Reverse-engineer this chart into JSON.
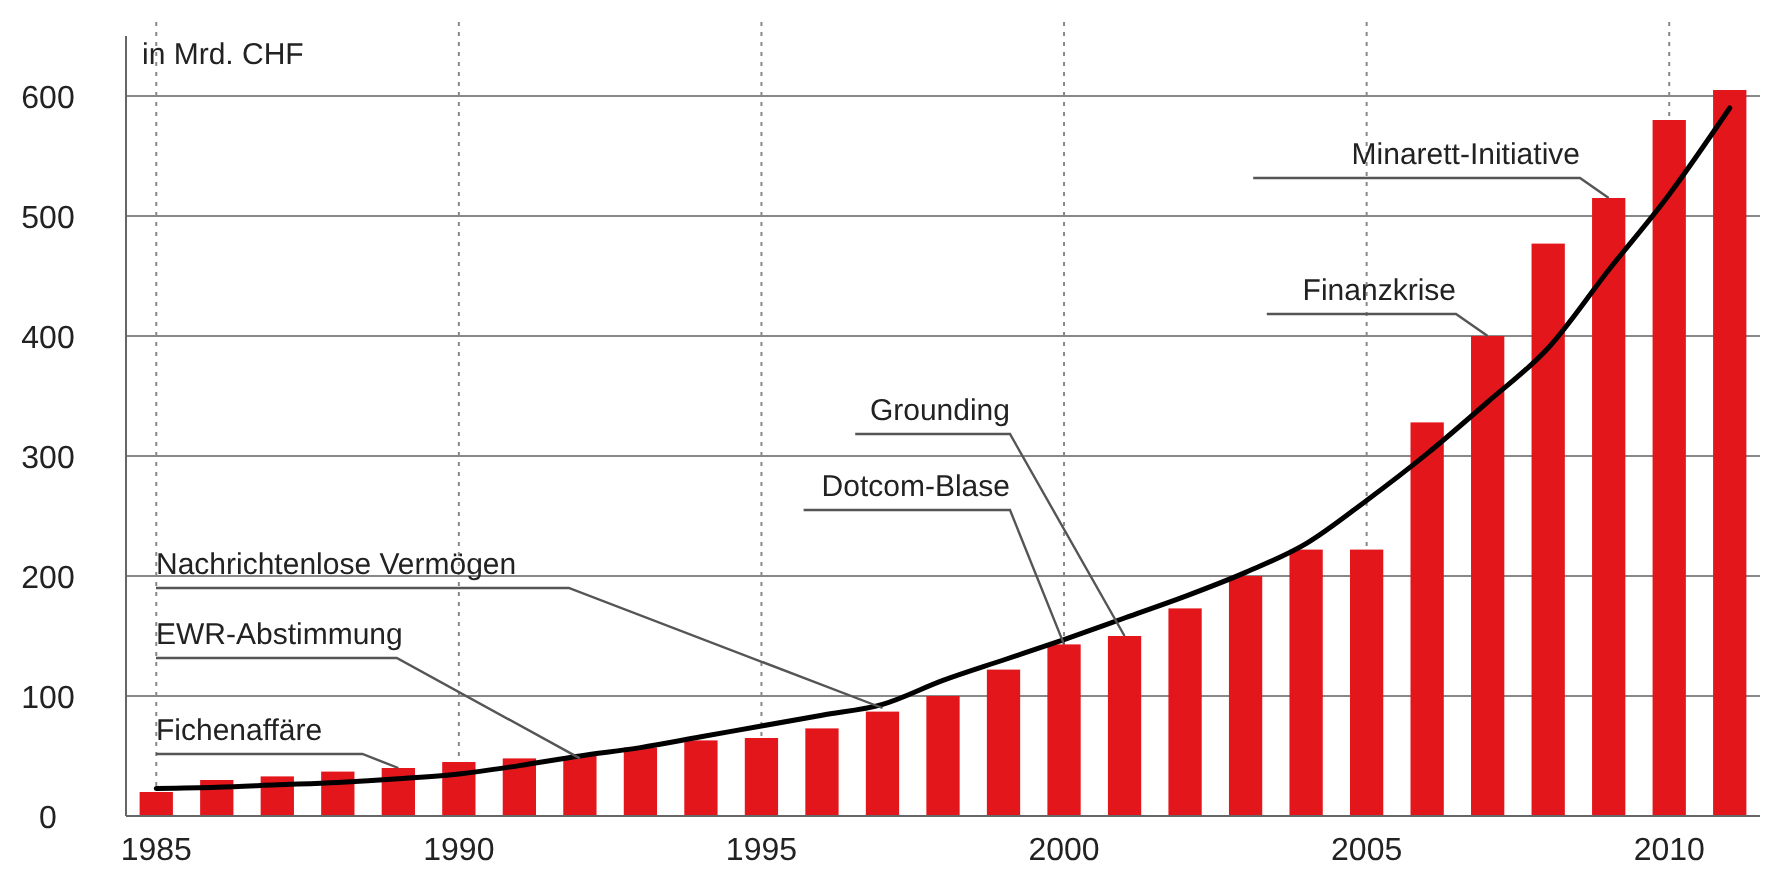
{
  "chart_data": {
    "type": "bar",
    "ylabel": "in Mrd. CHF",
    "x": [
      1985,
      1986,
      1987,
      1988,
      1989,
      1990,
      1991,
      1992,
      1993,
      1994,
      1995,
      1996,
      1997,
      1998,
      1999,
      2000,
      2001,
      2002,
      2003,
      2004,
      2005,
      2006,
      2007,
      2008,
      2009,
      2010,
      2011
    ],
    "series": [
      {
        "color": "#e3161b",
        "values": [
          20,
          30,
          33,
          37,
          40,
          45,
          48,
          50,
          57,
          63,
          65,
          73,
          87,
          100,
          122,
          143,
          150,
          173,
          200,
          222,
          222,
          328,
          400,
          477,
          515,
          580,
          605
        ]
      },
      {
        "type": "line",
        "color": "#000000",
        "x": [
          1985,
          1986,
          1987,
          1988,
          1989,
          1990,
          1991,
          1992,
          1993,
          1994,
          1995,
          1996,
          1997,
          1998,
          1999,
          2000,
          2001,
          2002,
          2003,
          2004,
          2005,
          2006,
          2007,
          2008,
          2009,
          2010,
          2011
        ],
        "values": [
          23,
          24,
          26,
          28,
          31,
          35,
          42,
          50,
          57,
          66,
          75,
          84,
          93,
          113,
          130,
          147,
          165,
          183,
          203,
          227,
          263,
          302,
          345,
          390,
          455,
          518,
          590
        ]
      }
    ],
    "xlim": [
      1984.5,
      2011.5
    ],
    "xticks": [
      1985,
      1990,
      1995,
      2000,
      2005,
      2010
    ],
    "ylim": [
      0,
      650
    ],
    "yticks": [
      0,
      100,
      200,
      300,
      400,
      500,
      600
    ],
    "grid": true,
    "line_style": "solid",
    "marker": "none",
    "annotations": [
      {
        "text": "Fichenaffäre",
        "x": 1989,
        "y": 40
      },
      {
        "text": "EWR-Abstimmung",
        "x": 1992,
        "y": 48
      },
      {
        "text": "Nachrichtenlose Vermögen",
        "x": 1997,
        "y": 90
      },
      {
        "text": "Dotcom-Blase",
        "x": 2000,
        "y": 143
      },
      {
        "text": "Grounding",
        "x": 2001,
        "y": 150
      },
      {
        "text": "Finanzkrise",
        "x": 2007,
        "y": 400
      },
      {
        "text": "Minarett-Initiative",
        "x": 2009,
        "y": 515
      }
    ]
  }
}
